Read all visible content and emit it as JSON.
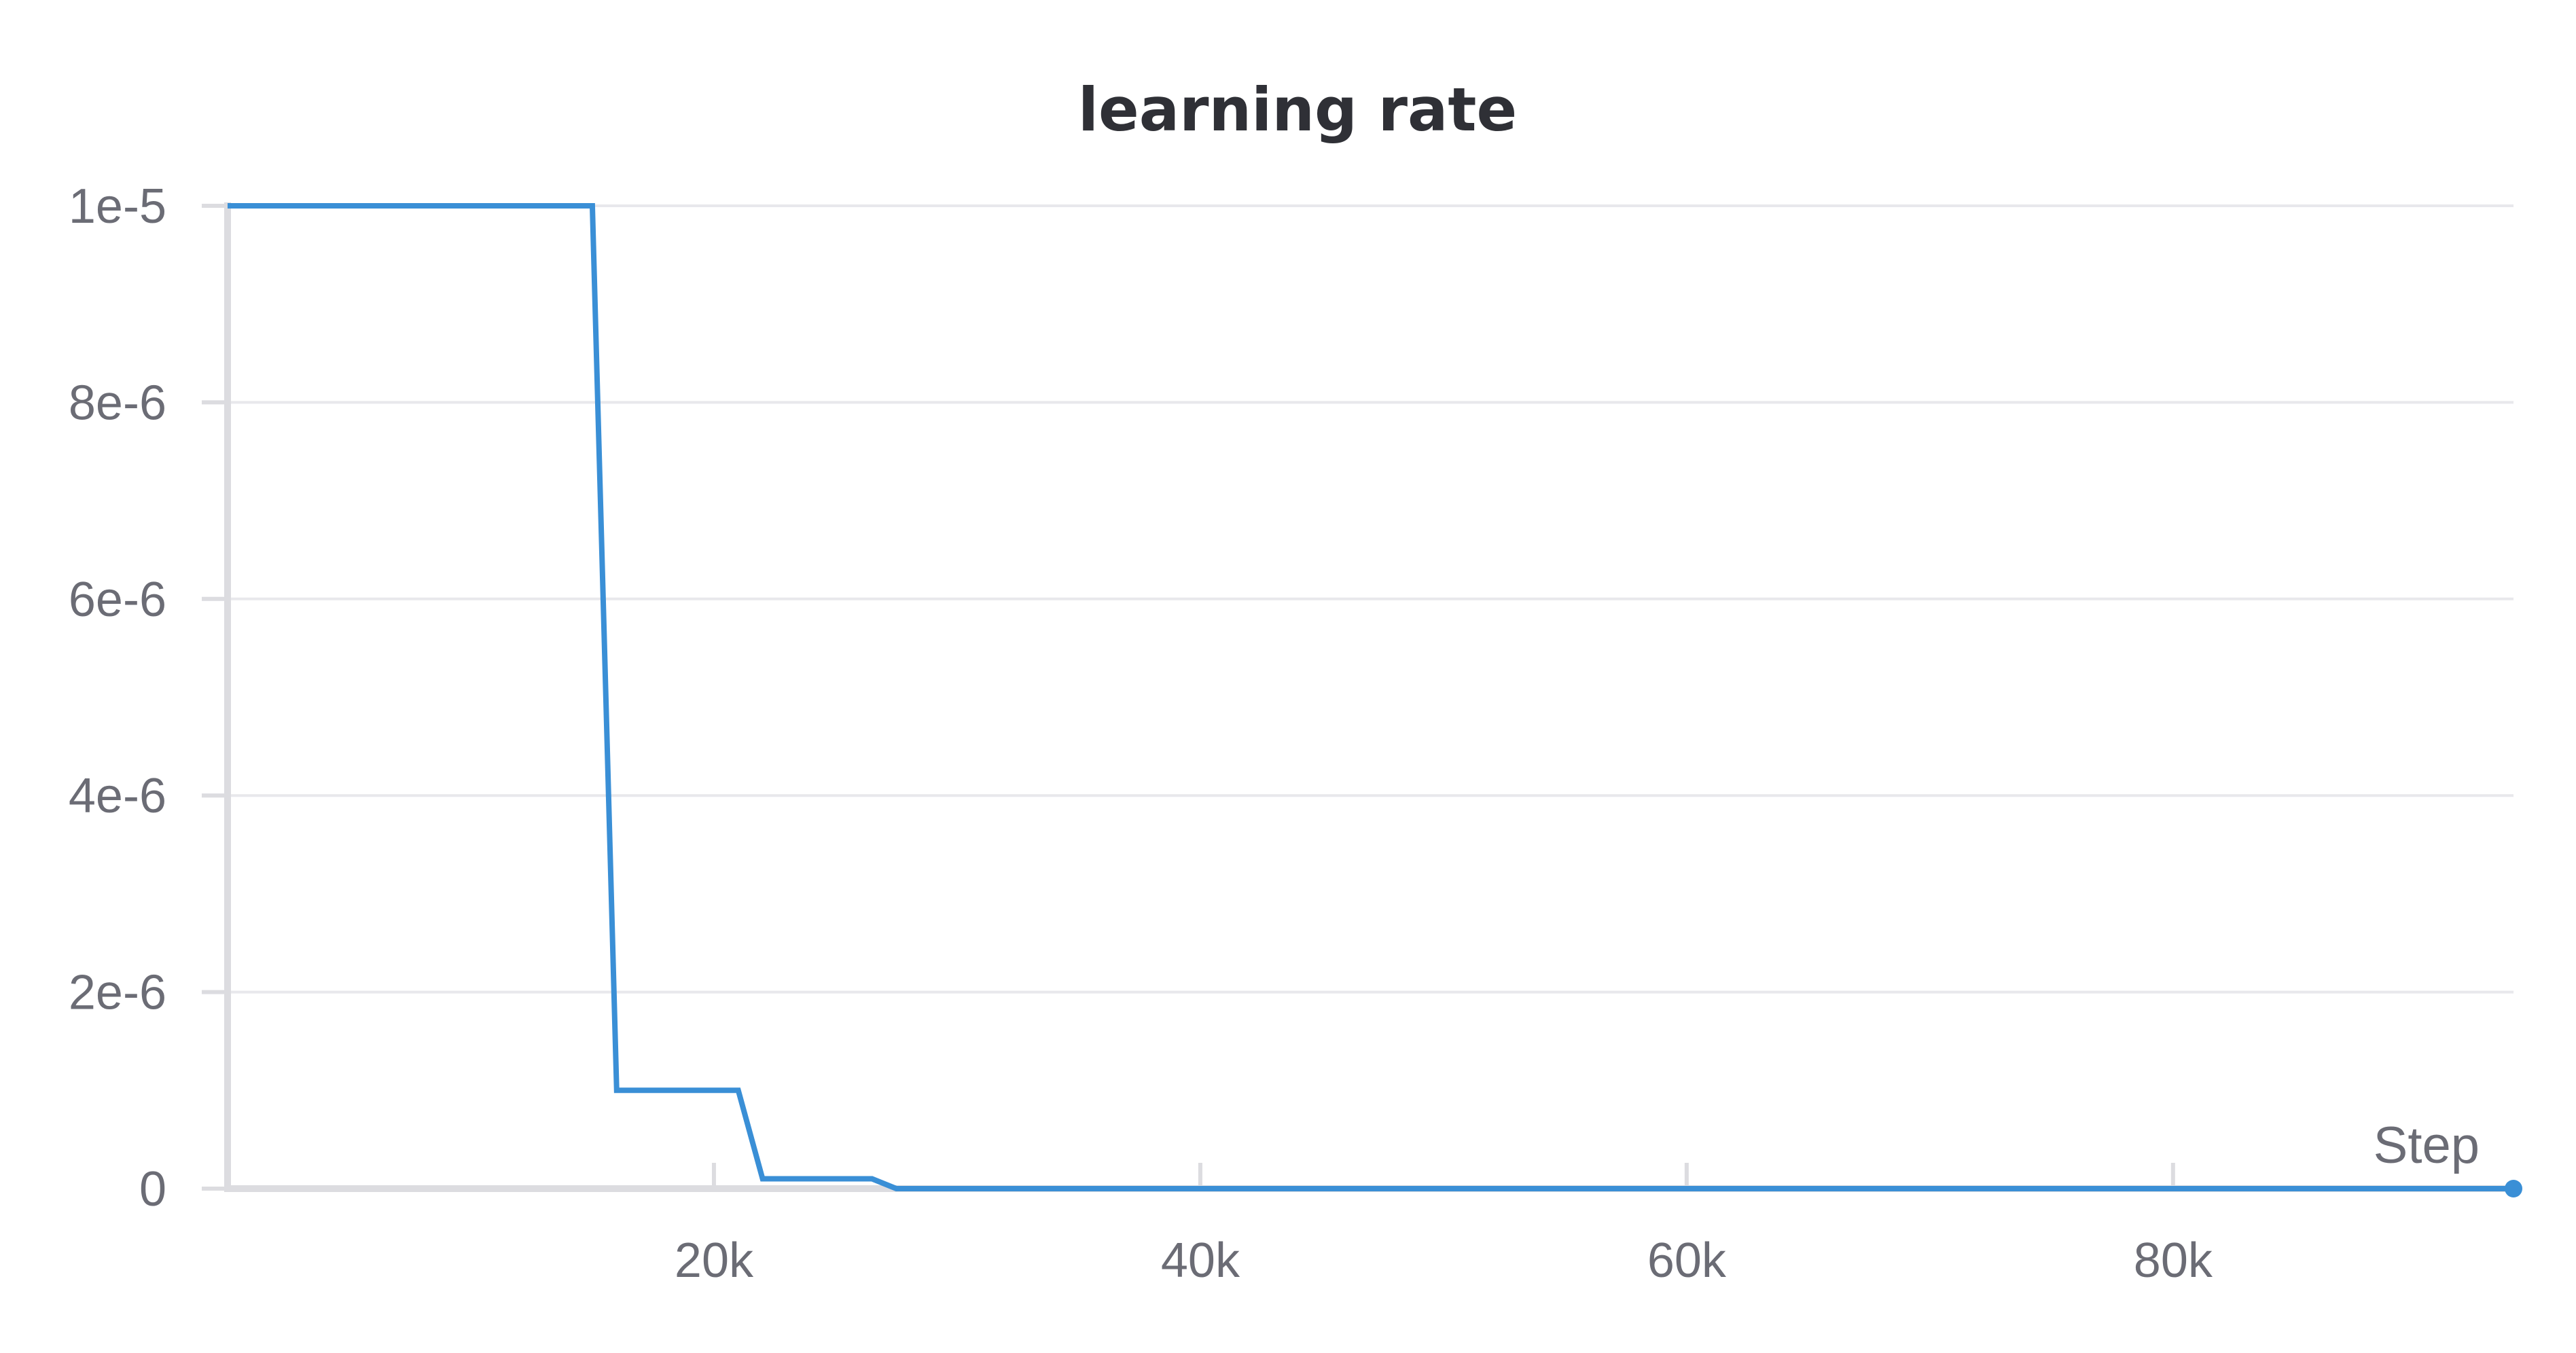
{
  "chart_data": {
    "type": "line",
    "title": "learning rate",
    "xlabel": "Step",
    "ylabel": "",
    "xlim": [
      0,
      94000
    ],
    "ylim": [
      0,
      1e-05
    ],
    "xticks": [
      {
        "value": 20000,
        "label": "20k"
      },
      {
        "value": 40000,
        "label": "40k"
      },
      {
        "value": 60000,
        "label": "60k"
      },
      {
        "value": 80000,
        "label": "80k"
      }
    ],
    "yticks": [
      {
        "value": 0,
        "label": "0"
      },
      {
        "value": 2e-06,
        "label": "2e-6"
      },
      {
        "value": 4e-06,
        "label": "4e-6"
      },
      {
        "value": 6e-06,
        "label": "6e-6"
      },
      {
        "value": 8e-06,
        "label": "8e-6"
      },
      {
        "value": 1e-05,
        "label": "1e-5"
      }
    ],
    "grid": true,
    "series": [
      {
        "color": "#3a8fd6",
        "x": [
          0,
          15000,
          16000,
          21000,
          22000,
          26500,
          27500,
          94000
        ],
        "y": [
          1e-05,
          1e-05,
          1e-06,
          1e-06,
          1e-07,
          1e-07,
          0.0,
          0.0
        ]
      }
    ]
  }
}
